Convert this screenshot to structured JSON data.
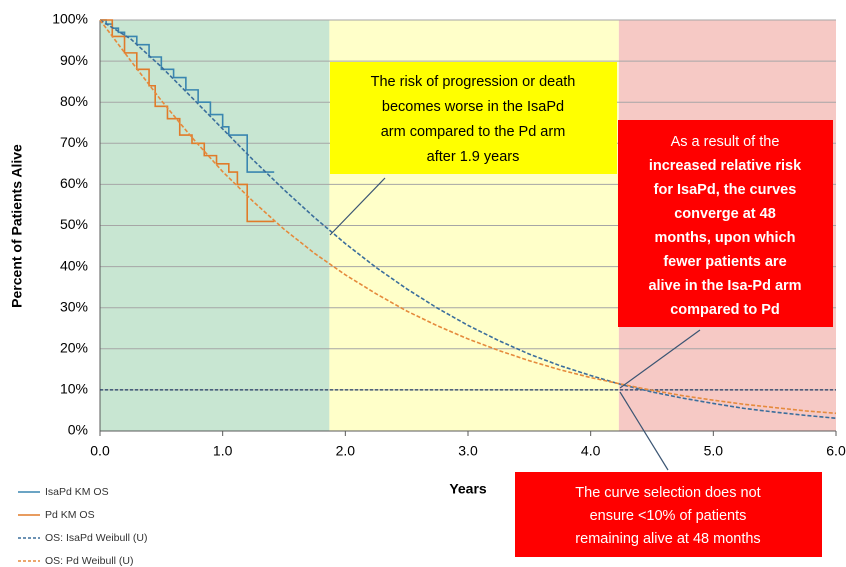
{
  "chart_data": {
    "type": "line",
    "xlabel": "Years",
    "ylabel": "Percent of Patients Alive",
    "xlim": [
      0,
      6
    ],
    "ylim": [
      0,
      100
    ],
    "xticks": [
      {
        "value": 0,
        "label": "0.0"
      },
      {
        "value": 1,
        "label": "1.0"
      },
      {
        "value": 2,
        "label": "2.0"
      },
      {
        "value": 3,
        "label": "3.0"
      },
      {
        "value": 4,
        "label": "4.0"
      },
      {
        "value": 5,
        "label": "5.0"
      },
      {
        "value": 6,
        "label": "6.0"
      }
    ],
    "yticks": [
      {
        "value": 0,
        "label": "0%"
      },
      {
        "value": 10,
        "label": "10%"
      },
      {
        "value": 20,
        "label": "20%"
      },
      {
        "value": 30,
        "label": "30%"
      },
      {
        "value": 40,
        "label": "40%"
      },
      {
        "value": 50,
        "label": "50%"
      },
      {
        "value": 60,
        "label": "60%"
      },
      {
        "value": 70,
        "label": "70%"
      },
      {
        "value": 80,
        "label": "80%"
      },
      {
        "value": 90,
        "label": "90%"
      },
      {
        "value": 100,
        "label": "100%"
      }
    ],
    "grid": true,
    "regions": [
      {
        "from": 0,
        "to": 1.87,
        "color": "#c8e6d2"
      },
      {
        "from": 1.87,
        "to": 4.23,
        "color": "#ffffc9"
      },
      {
        "from": 4.23,
        "to": 6,
        "color": "#f6c9c5"
      }
    ],
    "reference_line": {
      "value": 10,
      "color": "#1f3864"
    },
    "series": [
      {
        "name": "IsaPd KM OS",
        "color": "#3a86b0",
        "step": true,
        "dashed": false,
        "x": [
          0,
          0.05,
          0.1,
          0.15,
          0.2,
          0.3,
          0.4,
          0.5,
          0.6,
          0.7,
          0.8,
          0.9,
          1.0,
          1.05,
          1.2,
          1.42
        ],
        "values": [
          100,
          99,
          98,
          97,
          96,
          94,
          91,
          88,
          86,
          83,
          80,
          77,
          74,
          72,
          63,
          63
        ]
      },
      {
        "name": "Pd KM OS",
        "color": "#e07b2a",
        "step": true,
        "dashed": false,
        "x": [
          0,
          0.1,
          0.2,
          0.3,
          0.4,
          0.45,
          0.55,
          0.65,
          0.75,
          0.85,
          0.95,
          1.05,
          1.12,
          1.2,
          1.42
        ],
        "values": [
          100,
          96,
          92,
          88,
          84,
          79,
          76,
          72,
          70,
          67,
          65,
          63,
          60,
          51,
          51
        ]
      },
      {
        "name": "OS: IsaPd Weibull (U)",
        "color": "#3b6e9c",
        "step": false,
        "dashed": true,
        "x": [
          0,
          0.25,
          0.5,
          0.75,
          1.0,
          1.25,
          1.5,
          1.75,
          2.0,
          2.25,
          2.5,
          2.75,
          3.0,
          3.25,
          3.5,
          3.75,
          4.0,
          4.25,
          4.5,
          4.75,
          5.0,
          5.25,
          5.5,
          5.75,
          6.0
        ],
        "values": [
          100,
          95.4,
          88.6,
          81.1,
          73.5,
          65.9,
          58.7,
          51.9,
          45.6,
          39.8,
          34.6,
          29.9,
          25.7,
          22.0,
          18.7,
          15.9,
          13.5,
          11.3,
          9.5,
          8.0,
          6.7,
          5.5,
          4.6,
          3.8,
          3.1
        ]
      },
      {
        "name": "OS: Pd Weibull (U)",
        "color": "#e58a3c",
        "step": false,
        "dashed": true,
        "x": [
          0,
          0.25,
          0.5,
          0.75,
          1.0,
          1.25,
          1.5,
          1.75,
          2.0,
          2.25,
          2.5,
          2.75,
          3.0,
          3.25,
          3.5,
          3.75,
          4.0,
          4.25,
          4.5,
          4.75,
          5.0,
          5.25,
          5.5,
          5.75,
          6.0
        ],
        "values": [
          100,
          90.1,
          80.4,
          71.4,
          63.1,
          55.8,
          49.1,
          43.2,
          38.0,
          33.4,
          29.2,
          25.6,
          22.4,
          19.6,
          17.1,
          14.9,
          13.0,
          11.4,
          9.9,
          8.6,
          7.5,
          6.5,
          5.7,
          4.9,
          4.3
        ]
      }
    ],
    "annotations": [
      {
        "color": "#ffff00",
        "text_color": "#000000",
        "lines": [
          "The risk of progression or death",
          "becomes worse in the IsaPd",
          "arm compared to the Pd arm",
          "after 1.9 years"
        ]
      },
      {
        "color": "#ff0000",
        "text_color": "#ffffff",
        "lines": [
          "As a result of the",
          "increased relative risk",
          "for IsaPd, the curves",
          "converge at 48",
          "months, upon which",
          "fewer patients are",
          "alive in the Isa-Pd arm",
          "compared to Pd"
        ]
      },
      {
        "color": "#ff0000",
        "text_color": "#ffffff",
        "lines": [
          "The curve selection does not",
          "ensure <10% of patients",
          "remaining alive at 48 months"
        ]
      }
    ]
  }
}
